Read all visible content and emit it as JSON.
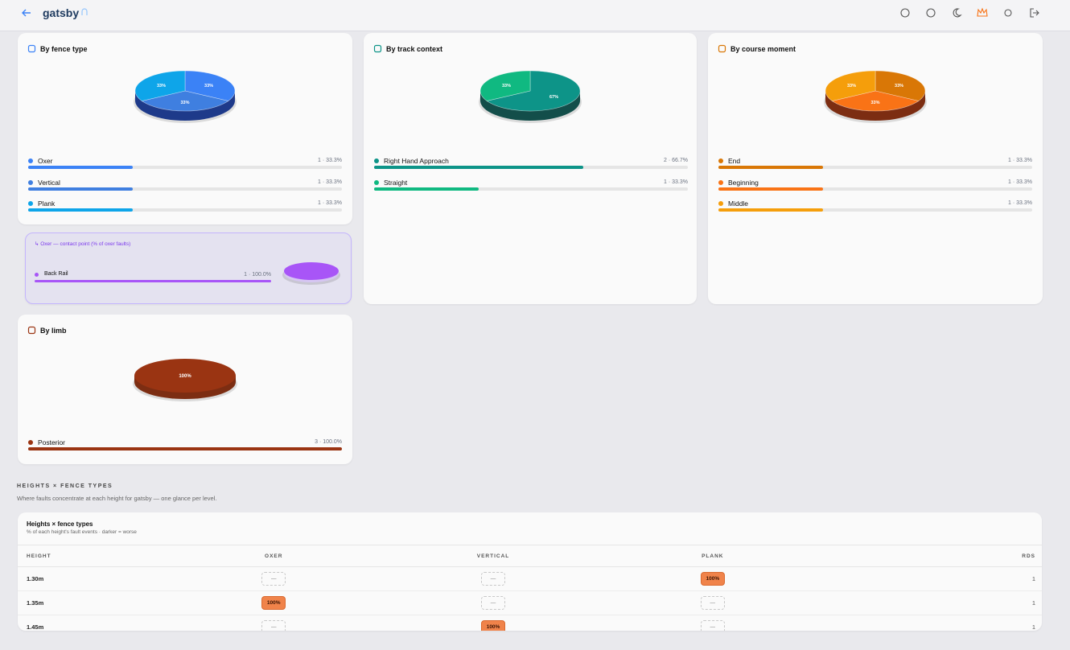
{
  "header": {
    "title": "gatsby"
  },
  "cards": [
    {
      "title": "By fence type",
      "shade": "#1e3a8a",
      "items": [
        {
          "name": "Oxer",
          "color": "#3b82f6",
          "value": 33.3,
          "label": "1 · 33.3%",
          "slice_label": "33%"
        },
        {
          "name": "Vertical",
          "color": "#3f7fe0",
          "value": 33.3,
          "label": "1 · 33.3%",
          "slice_label": "33%"
        },
        {
          "name": "Plank",
          "color": "#0ea5e9",
          "value": 33.3,
          "label": "1 · 33.3%",
          "slice_label": "33%"
        }
      ]
    },
    {
      "title": "By track context",
      "shade": "#134e4a",
      "items": [
        {
          "name": "Right Hand Approach",
          "color": "#0d9488",
          "value": 66.7,
          "label": "2 · 66.7%",
          "slice_label": "67%"
        },
        {
          "name": "Straight",
          "color": "#10b981",
          "value": 33.3,
          "label": "1 · 33.3%",
          "slice_label": "33%"
        }
      ]
    },
    {
      "title": "By course moment",
      "shade": "#7c2d12",
      "items": [
        {
          "name": "End",
          "color": "#d97706",
          "value": 33.3,
          "label": "1 · 33.3%",
          "slice_label": "33%"
        },
        {
          "name": "Beginning",
          "color": "#f97316",
          "value": 33.3,
          "label": "1 · 33.3%",
          "slice_label": "33%"
        },
        {
          "name": "Middle",
          "color": "#f59e0b",
          "value": 33.3,
          "label": "1 · 33.3%",
          "slice_label": "33%"
        }
      ]
    },
    {
      "title": "By limb",
      "shade": "#7c2d12",
      "items": [
        {
          "name": "Posterior",
          "color": "#9a3412",
          "value": 100,
          "label": "3 · 100.0%",
          "slice_label": "100%"
        }
      ]
    }
  ],
  "contact_point": {
    "title": "↳ Oxer — contact point (% of oxer faults)",
    "shade": "#d6c6f2",
    "items": [
      {
        "name": "Back Rail",
        "color": "#a855f7",
        "value": 100,
        "label": "1 · 100.0%"
      }
    ]
  },
  "section": {
    "heading": "HEIGHTS × FENCE TYPES",
    "note": "Where faults concentrate at each height for gatsby — one glance per level."
  },
  "table": {
    "title": "Heights × fence types",
    "subtitle": "% of each height's fault events · darker = worse",
    "columns": [
      "HEIGHT",
      "OXER",
      "VERTICAL",
      "PLANK",
      "RDS"
    ],
    "rows": [
      {
        "height": "1.30m",
        "cells": [
          {
            "label": "—"
          },
          {
            "label": "—"
          },
          {
            "value": 100,
            "label": "100%"
          }
        ],
        "rds": 1
      },
      {
        "height": "1.35m",
        "cells": [
          {
            "value": 100,
            "label": "100%"
          },
          {
            "label": "—"
          },
          {
            "label": "—"
          }
        ],
        "rds": 1
      },
      {
        "height": "1.45m",
        "cells": [
          {
            "label": "—"
          },
          {
            "value": 100,
            "label": "100%"
          },
          {
            "label": "—"
          }
        ],
        "rds": 1
      }
    ]
  }
}
